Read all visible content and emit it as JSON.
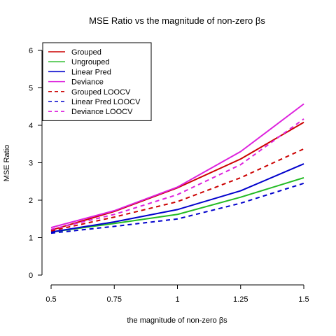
{
  "chart_data": {
    "type": "line",
    "title": "MSE Ratio vs the magnitude of non-zero βs",
    "xlabel": "the magnitude of non-zero βs",
    "ylabel": "MSE Ratio",
    "x": [
      0.5,
      0.75,
      1,
      1.25,
      1.5
    ],
    "x_tick_labels": [
      "0.5",
      "0.75",
      "1",
      "1.25",
      "1.5"
    ],
    "xlim": [
      0.5,
      1.5
    ],
    "ylim": [
      0,
      6
    ],
    "y_ticks": [
      0,
      1,
      2,
      3,
      4,
      5,
      6
    ],
    "y_tick_labels": [
      "0",
      "1",
      "2",
      "3",
      "4",
      "5",
      "6"
    ],
    "grid": false,
    "legend_position": "top-left",
    "series": [
      {
        "name": "Grouped",
        "color": "#cc0000",
        "dash": "solid",
        "values": [
          1.2,
          1.7,
          2.33,
          3.1,
          4.08
        ]
      },
      {
        "name": "Ungrouped",
        "color": "#22bb22",
        "dash": "solid",
        "values": [
          1.15,
          1.38,
          1.62,
          2.08,
          2.6
        ]
      },
      {
        "name": "Linear Pred",
        "color": "#0000cc",
        "dash": "solid",
        "values": [
          1.15,
          1.42,
          1.75,
          2.25,
          2.97
        ]
      },
      {
        "name": "Deviance",
        "color": "#dd22dd",
        "dash": "solid",
        "values": [
          1.27,
          1.72,
          2.35,
          3.3,
          4.57
        ]
      },
      {
        "name": "Grouped LOOCV",
        "color": "#cc0000",
        "dash": "dashed",
        "values": [
          1.18,
          1.55,
          1.96,
          2.6,
          3.37
        ]
      },
      {
        "name": "Linear Pred LOOCV",
        "color": "#0000cc",
        "dash": "dashed",
        "values": [
          1.12,
          1.3,
          1.5,
          1.92,
          2.45
        ]
      },
      {
        "name": "Deviance LOOCV",
        "color": "#dd22dd",
        "dash": "dashed",
        "values": [
          1.22,
          1.62,
          2.15,
          2.95,
          4.17
        ]
      }
    ]
  }
}
